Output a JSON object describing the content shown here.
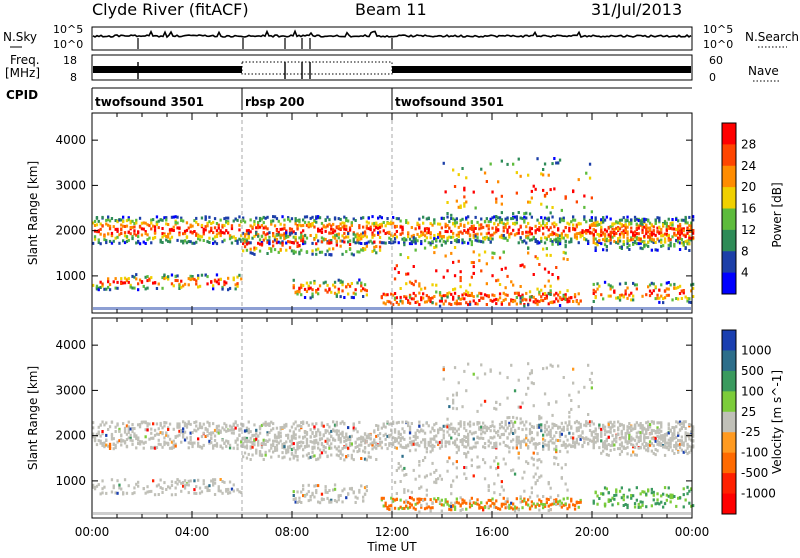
{
  "header": {
    "station": "Clyde River (fitACF)",
    "beam": "Beam 11",
    "date": "31/Jul/2013"
  },
  "noise_panel": {
    "left_label": "N.Sky",
    "right_label": "N.Search",
    "yticks": [
      "10^5",
      "10^0"
    ]
  },
  "freq_panel": {
    "left_label_1": "Freq.",
    "left_label_2": "[MHz]",
    "left_ticks": [
      "18",
      "8"
    ],
    "right_label": "Nave",
    "right_ticks": [
      "60",
      "0"
    ]
  },
  "cpid": {
    "label": "CPID",
    "segments": [
      {
        "name": "twofsound 3501",
        "start_hour": 0
      },
      {
        "name": "rbsp 200",
        "start_hour": 6
      },
      {
        "name": "twofsound 3501",
        "start_hour": 12
      }
    ]
  },
  "chart_data": [
    {
      "type": "heatmap",
      "name": "power",
      "ylabel": "Slant Range [km]",
      "ylim": [
        180,
        4600
      ],
      "yticks": [
        1000,
        2000,
        3000,
        4000
      ],
      "xlim_hours": [
        0,
        24
      ],
      "colorbar_label": "Power [dB]",
      "colorbar_ticks": [
        "4",
        "8",
        "12",
        "16",
        "20",
        "24",
        "28"
      ],
      "colors": [
        "#0000ff",
        "#1c3fa8",
        "#2e8b57",
        "#5dbb3c",
        "#f0d000",
        "#ff8c00",
        "#ff4500",
        "#ff0000"
      ]
    },
    {
      "type": "heatmap",
      "name": "velocity",
      "ylabel": "Slant Range [km]",
      "ylim": [
        180,
        4600
      ],
      "yticks": [
        1000,
        2000,
        3000,
        4000
      ],
      "xlim_hours": [
        0,
        24
      ],
      "colorbar_label": "Velocity [m s^-1]",
      "colorbar_ticks": [
        "1000",
        "500",
        "100",
        "25",
        "-25",
        "-100",
        "-500",
        "-1000"
      ],
      "colors": [
        "#1a3fb0",
        "#2d6e8a",
        "#3a9a5e",
        "#7ccc3a",
        "#c0c0b8",
        "#ff9a20",
        "#ff6a00",
        "#ff2000",
        "#ff0000"
      ]
    }
  ],
  "xaxis": {
    "label": "Time UT",
    "ticks": [
      "00:00",
      "04:00",
      "08:00",
      "12:00",
      "16:00",
      "20:00",
      "00:00"
    ]
  }
}
